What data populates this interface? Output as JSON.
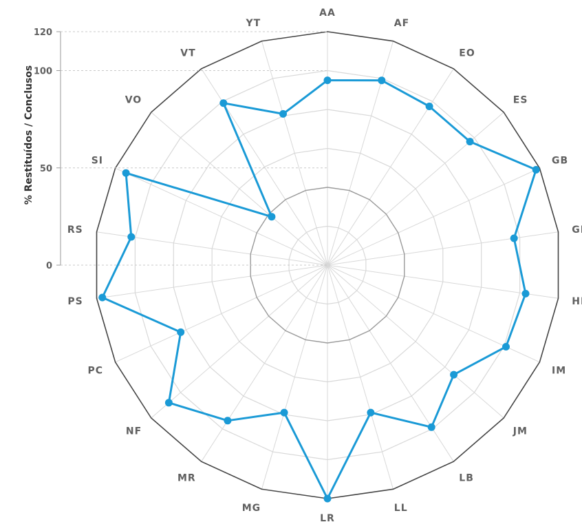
{
  "chart_data": {
    "type": "radar",
    "ylabel": "% Restituídos / Conclusos",
    "y_ticks": [
      "0",
      "50",
      "100",
      "120"
    ],
    "range": [
      0,
      120
    ],
    "grid": true,
    "categories": [
      "AA",
      "AF",
      "EO",
      "ES",
      "GB",
      "GR",
      "HM",
      "IM",
      "JM",
      "LB",
      "LL",
      "LR",
      "MG",
      "MR",
      "NF",
      "PC",
      "PS",
      "RS",
      "SI",
      "VO",
      "VT",
      "YT"
    ],
    "series": [
      {
        "color": "#1a9ad6",
        "values": [
          95,
          99,
          97,
          97,
          118,
          97,
          103,
          101,
          86,
          99,
          79,
          120,
          79,
          95,
          108,
          83,
          117,
          102,
          114,
          38,
          99,
          81
        ]
      }
    ],
    "colors": {
      "series": "#1a9ad6",
      "outer_ring": "#444444",
      "inner_ring": "#9a9a9a",
      "mid_ring": "#d8d8d8",
      "spoke": "#d8d8d8",
      "tick_guide": "#c8c8c8",
      "label": "#606060"
    }
  }
}
